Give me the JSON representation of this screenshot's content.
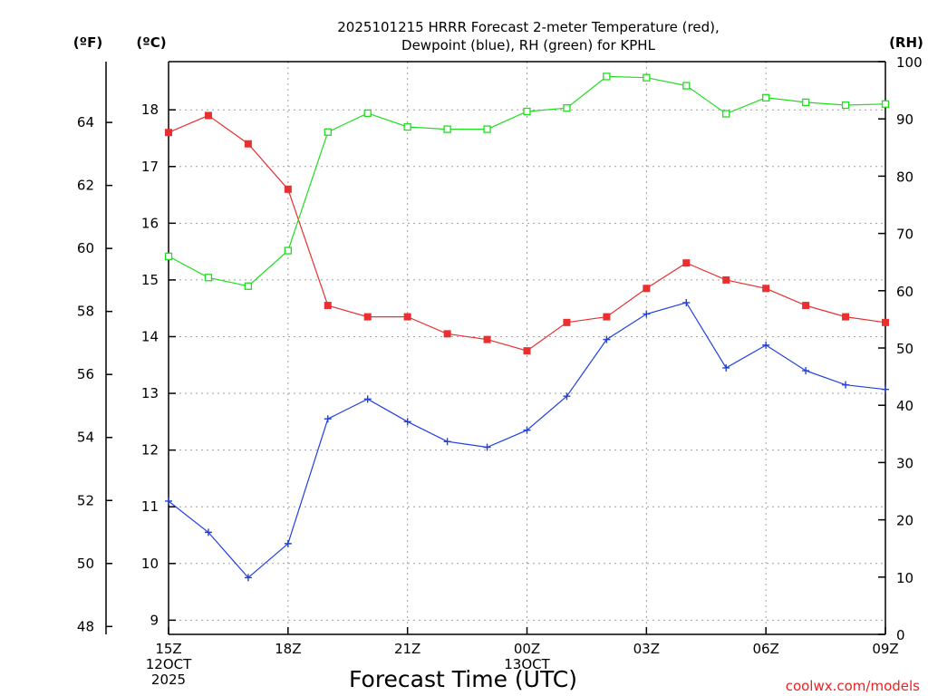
{
  "chart_data": {
    "type": "line",
    "title_lines": [
      "2025101215 HRRR Forecast 2-meter Temperature (red),",
      "Dewpoint (blue), RH (green) for KPHL"
    ],
    "units": {
      "fahrenheit": "(ºF)",
      "celsius": "(ºC)",
      "rh": "(RH)"
    },
    "xlabel": "Forecast Time (UTC)",
    "credit": "coolwx.com/models",
    "x_ticks": [
      {
        "hour": 0,
        "lines": [
          "15Z",
          "12OCT",
          "2025"
        ]
      },
      {
        "hour": 3,
        "lines": [
          "18Z"
        ]
      },
      {
        "hour": 6,
        "lines": [
          "21Z"
        ]
      },
      {
        "hour": 9,
        "lines": [
          "00Z",
          "13OCT"
        ]
      },
      {
        "hour": 12,
        "lines": [
          "03Z"
        ]
      },
      {
        "hour": 15,
        "lines": [
          "06Z"
        ]
      },
      {
        "hour": 18,
        "lines": [
          "09Z"
        ]
      }
    ],
    "x_range": [
      0,
      18
    ],
    "celsius_axis": {
      "min": 8.75,
      "max": 18.85,
      "ticks": [
        9,
        10,
        11,
        12,
        13,
        14,
        15,
        16,
        17,
        18
      ]
    },
    "fahrenheit_axis": {
      "ticks": [
        48,
        50,
        52,
        54,
        56,
        58,
        60,
        62,
        64
      ]
    },
    "rh_axis": {
      "min": 0,
      "max": 100,
      "ticks": [
        0,
        10,
        20,
        30,
        40,
        50,
        60,
        70,
        80,
        90,
        100
      ]
    },
    "grid": true,
    "series": [
      {
        "name": "2-meter Temperature",
        "color": "#e83030",
        "axis": "celsius",
        "marker": "filled-square",
        "x": [
          0,
          1,
          2,
          3,
          4,
          5,
          6,
          7,
          8,
          9,
          10,
          11,
          12,
          13,
          14,
          15,
          16,
          17,
          18
        ],
        "values": [
          17.6,
          17.9,
          17.4,
          16.6,
          14.55,
          14.35,
          14.35,
          14.05,
          13.95,
          13.75,
          14.25,
          14.35,
          14.85,
          15.3,
          15.0,
          14.85,
          14.55,
          14.35,
          14.25
        ]
      },
      {
        "name": "Dewpoint",
        "color": "#2040e0",
        "axis": "celsius",
        "marker": "plus",
        "x": [
          0,
          1,
          2,
          3,
          4,
          5,
          6,
          7,
          8,
          9,
          10,
          11,
          12,
          13,
          14,
          15,
          16,
          17,
          18
        ],
        "values": [
          11.1,
          10.55,
          9.75,
          10.35,
          12.55,
          12.9,
          12.5,
          12.15,
          12.05,
          12.35,
          12.95,
          13.95,
          14.4,
          14.6,
          13.45,
          13.85,
          13.4,
          13.15,
          13.07
        ]
      },
      {
        "name": "RH",
        "color": "#20dd20",
        "axis": "rh",
        "marker": "open-square",
        "x": [
          0,
          1,
          2,
          3,
          4,
          5,
          6,
          7,
          8,
          9,
          10,
          11,
          12,
          13,
          14,
          15,
          16,
          17,
          18
        ],
        "values": [
          66,
          62.3,
          60.8,
          67,
          87.7,
          91,
          88.6,
          88.2,
          88.2,
          91.3,
          91.9,
          97.4,
          97.2,
          95.8,
          90.9,
          93.7,
          92.9,
          92.4,
          92.6
        ]
      }
    ]
  }
}
